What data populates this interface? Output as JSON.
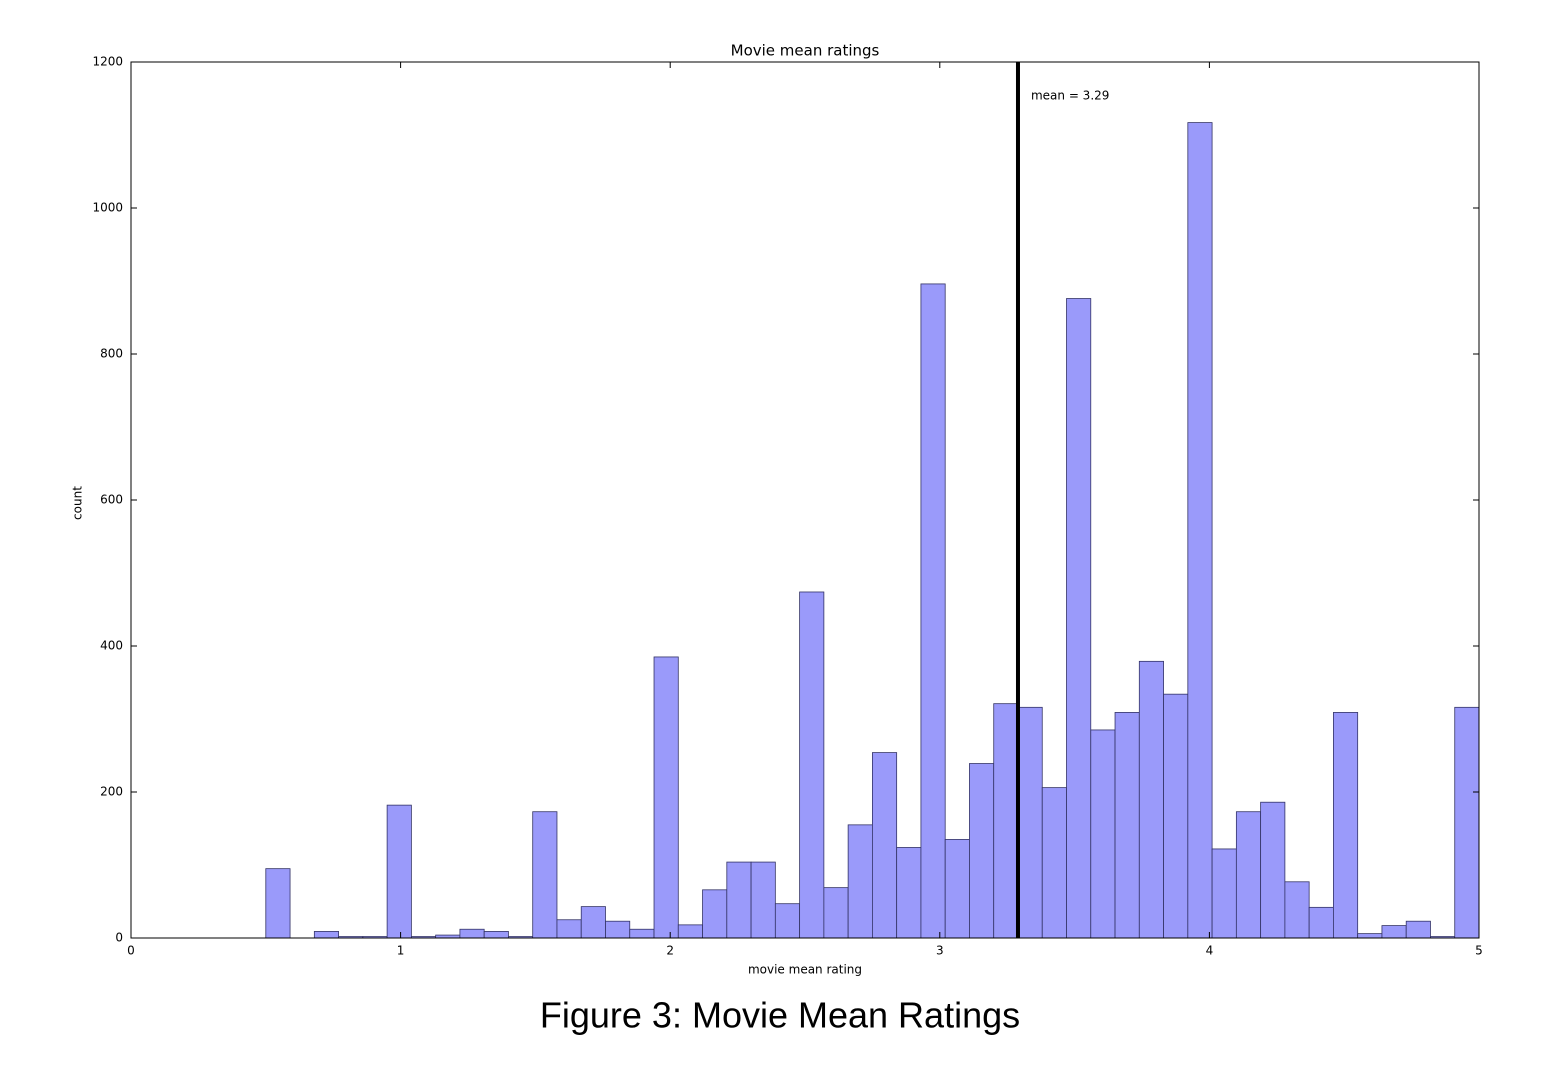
{
  "chart_data": {
    "type": "histogram",
    "title": "Movie mean ratings",
    "x_label": "movie mean rating",
    "y_label": "count",
    "bins": [
      0.5,
      0.59,
      0.68,
      0.77,
      0.86,
      0.95,
      1.04,
      1.13,
      1.22,
      1.31,
      1.4,
      1.49,
      1.58,
      1.67,
      1.76,
      1.85,
      1.94,
      2.03,
      2.12,
      2.21,
      2.3,
      2.39,
      2.48,
      2.57,
      2.66,
      2.75,
      2.84,
      2.93,
      3.02,
      3.11,
      3.2,
      3.29,
      3.38,
      3.47,
      3.56,
      3.65,
      3.74,
      3.83,
      3.92,
      4.01,
      4.1,
      4.19,
      4.28,
      4.37,
      4.46,
      4.55,
      4.64,
      4.73,
      4.82,
      4.91,
      5.0
    ],
    "values": [
      95,
      0,
      9,
      2,
      2,
      182,
      2,
      4,
      12,
      9,
      2,
      173,
      25,
      43,
      23,
      12,
      385,
      18,
      66,
      104,
      104,
      47,
      474,
      69,
      155,
      254,
      124,
      896,
      135,
      239,
      321,
      316,
      206,
      876,
      285,
      309,
      379,
      334,
      1117,
      122,
      173,
      186,
      77,
      42,
      309,
      6,
      17,
      23,
      2,
      316
    ],
    "color": "#9a9afa",
    "edge_color": "#333366",
    "mean": 3.29,
    "mean_label": "mean = 3.29",
    "xlim": [
      0,
      5
    ],
    "xticks": [
      0,
      1,
      2,
      3,
      4,
      5
    ],
    "ylim": [
      0,
      1200
    ],
    "yticks": [
      0,
      200,
      400,
      600,
      800,
      1000,
      1200
    ],
    "caption": "Figure 3: Movie Mean Ratings"
  }
}
